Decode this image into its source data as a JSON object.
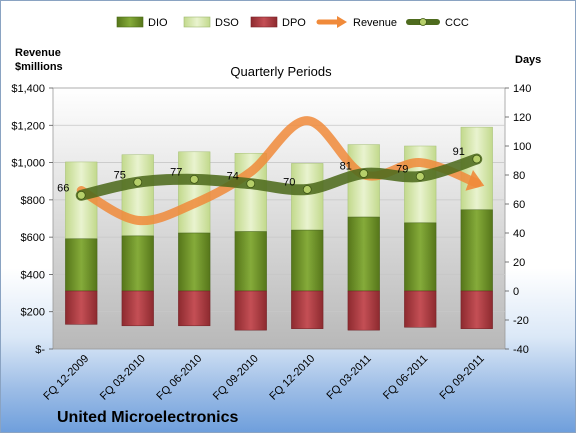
{
  "chart_data": {
    "type": "bar",
    "title": "Quarterly Periods",
    "company": "United Microelectronics",
    "y_left_label": [
      "Revenue",
      "$millions"
    ],
    "y_right_label": "Days",
    "y_left_ticks": [
      "$-",
      "$200",
      "$400",
      "$600",
      "$800",
      "$1,000",
      "$1,200",
      "$1,400"
    ],
    "y_right_ticks": [
      "-40",
      "-20",
      "0",
      "20",
      "40",
      "60",
      "80",
      "100",
      "120",
      "140"
    ],
    "ylim_left": [
      0,
      1400
    ],
    "ylim_right": [
      -40,
      140
    ],
    "categories": [
      "FQ 12-2009",
      "FQ 03-2010",
      "FQ 06-2010",
      "FQ 09-2010",
      "FQ 12-2010",
      "FQ 03-2011",
      "FQ 06-2011",
      "FQ 09-2011"
    ],
    "legend": [
      "DIO",
      "DSO",
      "DPO",
      "Revenue",
      "CCC"
    ],
    "series": [
      {
        "name": "DIO",
        "axis": "right",
        "stack": "positive",
        "values": [
          36,
          38,
          40,
          41,
          42,
          51,
          47,
          56
        ]
      },
      {
        "name": "DSO",
        "axis": "right",
        "stack": "positive",
        "values": [
          53,
          56,
          56,
          54,
          46,
          50,
          53,
          57
        ]
      },
      {
        "name": "DPO",
        "axis": "right",
        "stack": "negative",
        "values": [
          23,
          24,
          24,
          27,
          26,
          27,
          25,
          26
        ]
      },
      {
        "name": "Revenue",
        "axis": "left",
        "values": [
          850,
          690,
          780,
          950,
          1225,
          935,
          1000,
          890
        ]
      },
      {
        "name": "CCC",
        "axis": "right",
        "values": [
          66,
          75,
          77,
          74,
          70,
          81,
          79,
          91
        ]
      }
    ],
    "colors": {
      "DIO": "#6b8e23",
      "DSO": "#d4e6a8",
      "DPO": "#b03a3f",
      "Revenue": "#f08a3a",
      "CCC": "#4e6b1e"
    }
  }
}
